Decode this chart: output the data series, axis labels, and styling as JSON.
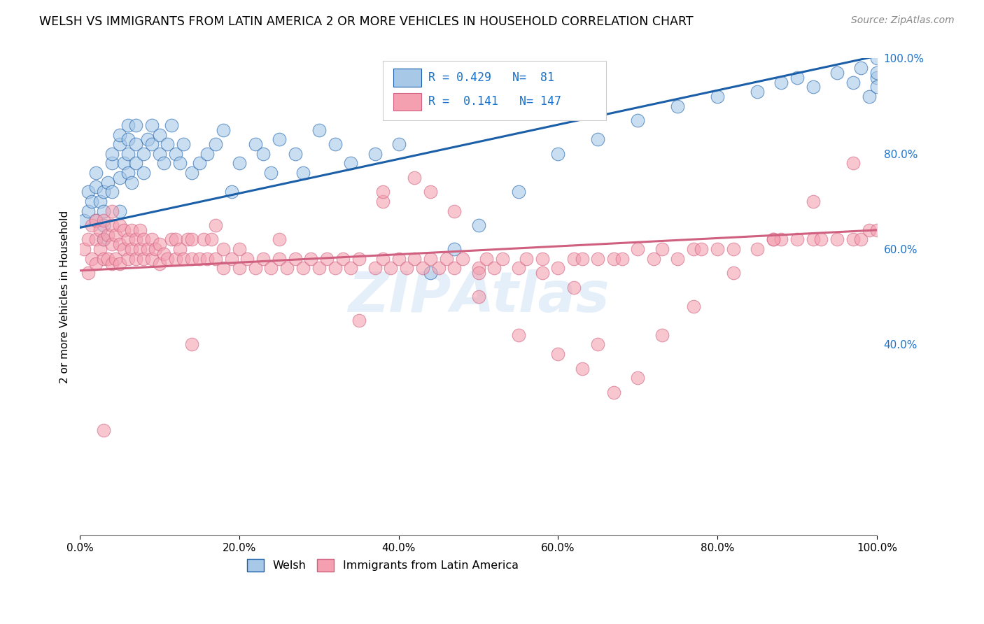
{
  "title": "WELSH VS IMMIGRANTS FROM LATIN AMERICA 2 OR MORE VEHICLES IN HOUSEHOLD CORRELATION CHART",
  "source": "Source: ZipAtlas.com",
  "ylabel": "2 or more Vehicles in Household",
  "R_welsh": 0.429,
  "N_welsh": 81,
  "R_latin": 0.141,
  "N_latin": 147,
  "welsh_color": "#a8c8e8",
  "latin_color": "#f4a0b0",
  "welsh_line_color": "#1a5fa8",
  "latin_line_color": "#d06080",
  "background_color": "#ffffff",
  "grid_color": "#cccccc",
  "xlim": [
    0.0,
    1.0
  ],
  "ylim": [
    0.0,
    1.0
  ],
  "welsh_line_x0": 0.0,
  "welsh_line_y0": 0.645,
  "welsh_line_x1": 1.0,
  "welsh_line_y1": 1.005,
  "latin_line_x0": 0.0,
  "latin_line_y0": 0.555,
  "latin_line_x1": 1.0,
  "latin_line_y1": 0.64,
  "welsh_x": [
    0.005,
    0.01,
    0.01,
    0.015,
    0.02,
    0.02,
    0.02,
    0.025,
    0.03,
    0.03,
    0.03,
    0.03,
    0.035,
    0.04,
    0.04,
    0.04,
    0.05,
    0.05,
    0.05,
    0.05,
    0.055,
    0.06,
    0.06,
    0.06,
    0.06,
    0.065,
    0.07,
    0.07,
    0.07,
    0.08,
    0.08,
    0.085,
    0.09,
    0.09,
    0.1,
    0.1,
    0.105,
    0.11,
    0.115,
    0.12,
    0.125,
    0.13,
    0.14,
    0.15,
    0.16,
    0.17,
    0.18,
    0.19,
    0.2,
    0.22,
    0.23,
    0.24,
    0.25,
    0.27,
    0.28,
    0.3,
    0.32,
    0.34,
    0.37,
    0.4,
    0.44,
    0.47,
    0.5,
    0.55,
    0.6,
    0.65,
    0.7,
    0.75,
    0.8,
    0.85,
    0.88,
    0.9,
    0.92,
    0.95,
    0.97,
    0.98,
    0.99,
    1.0,
    1.0,
    1.0,
    1.0
  ],
  "welsh_y": [
    0.66,
    0.68,
    0.72,
    0.7,
    0.73,
    0.76,
    0.66,
    0.7,
    0.68,
    0.72,
    0.65,
    0.62,
    0.74,
    0.72,
    0.78,
    0.8,
    0.75,
    0.82,
    0.84,
    0.68,
    0.78,
    0.76,
    0.8,
    0.83,
    0.86,
    0.74,
    0.78,
    0.82,
    0.86,
    0.76,
    0.8,
    0.83,
    0.82,
    0.86,
    0.8,
    0.84,
    0.78,
    0.82,
    0.86,
    0.8,
    0.78,
    0.82,
    0.76,
    0.78,
    0.8,
    0.82,
    0.85,
    0.72,
    0.78,
    0.82,
    0.8,
    0.76,
    0.83,
    0.8,
    0.76,
    0.85,
    0.82,
    0.78,
    0.8,
    0.82,
    0.55,
    0.6,
    0.65,
    0.72,
    0.8,
    0.83,
    0.87,
    0.9,
    0.92,
    0.93,
    0.95,
    0.96,
    0.94,
    0.97,
    0.95,
    0.98,
    0.92,
    0.96,
    1.0,
    0.97,
    0.94
  ],
  "latin_x": [
    0.005,
    0.01,
    0.01,
    0.015,
    0.015,
    0.02,
    0.02,
    0.02,
    0.025,
    0.025,
    0.03,
    0.03,
    0.03,
    0.035,
    0.035,
    0.04,
    0.04,
    0.04,
    0.04,
    0.045,
    0.045,
    0.05,
    0.05,
    0.05,
    0.055,
    0.055,
    0.06,
    0.06,
    0.065,
    0.065,
    0.07,
    0.07,
    0.075,
    0.075,
    0.08,
    0.08,
    0.085,
    0.09,
    0.09,
    0.095,
    0.1,
    0.1,
    0.105,
    0.11,
    0.115,
    0.12,
    0.12,
    0.125,
    0.13,
    0.135,
    0.14,
    0.14,
    0.15,
    0.155,
    0.16,
    0.165,
    0.17,
    0.18,
    0.18,
    0.19,
    0.2,
    0.2,
    0.21,
    0.22,
    0.23,
    0.24,
    0.25,
    0.25,
    0.26,
    0.27,
    0.28,
    0.29,
    0.3,
    0.31,
    0.32,
    0.33,
    0.34,
    0.35,
    0.37,
    0.38,
    0.39,
    0.4,
    0.41,
    0.42,
    0.43,
    0.44,
    0.45,
    0.46,
    0.47,
    0.48,
    0.5,
    0.51,
    0.52,
    0.53,
    0.55,
    0.56,
    0.58,
    0.6,
    0.62,
    0.63,
    0.65,
    0.67,
    0.68,
    0.7,
    0.72,
    0.73,
    0.75,
    0.77,
    0.78,
    0.8,
    0.82,
    0.85,
    0.87,
    0.88,
    0.9,
    0.92,
    0.93,
    0.95,
    0.97,
    0.98,
    0.99,
    1.0,
    0.03,
    0.14,
    0.17,
    0.35,
    0.38,
    0.44,
    0.47,
    0.5,
    0.55,
    0.6,
    0.63,
    0.67,
    0.7,
    0.73,
    0.77,
    0.82,
    0.87,
    0.92,
    0.97,
    0.62,
    0.38,
    0.42,
    0.5,
    0.58,
    0.65
  ],
  "latin_y": [
    0.6,
    0.55,
    0.62,
    0.58,
    0.65,
    0.57,
    0.62,
    0.66,
    0.6,
    0.64,
    0.58,
    0.62,
    0.66,
    0.58,
    0.63,
    0.57,
    0.61,
    0.65,
    0.68,
    0.58,
    0.63,
    0.57,
    0.61,
    0.65,
    0.6,
    0.64,
    0.58,
    0.62,
    0.6,
    0.64,
    0.58,
    0.62,
    0.6,
    0.64,
    0.58,
    0.62,
    0.6,
    0.58,
    0.62,
    0.6,
    0.57,
    0.61,
    0.59,
    0.58,
    0.62,
    0.58,
    0.62,
    0.6,
    0.58,
    0.62,
    0.58,
    0.62,
    0.58,
    0.62,
    0.58,
    0.62,
    0.58,
    0.56,
    0.6,
    0.58,
    0.56,
    0.6,
    0.58,
    0.56,
    0.58,
    0.56,
    0.58,
    0.62,
    0.56,
    0.58,
    0.56,
    0.58,
    0.56,
    0.58,
    0.56,
    0.58,
    0.56,
    0.58,
    0.56,
    0.58,
    0.56,
    0.58,
    0.56,
    0.58,
    0.56,
    0.58,
    0.56,
    0.58,
    0.56,
    0.58,
    0.56,
    0.58,
    0.56,
    0.58,
    0.56,
    0.58,
    0.58,
    0.56,
    0.58,
    0.58,
    0.58,
    0.58,
    0.58,
    0.6,
    0.58,
    0.6,
    0.58,
    0.6,
    0.6,
    0.6,
    0.6,
    0.6,
    0.62,
    0.62,
    0.62,
    0.62,
    0.62,
    0.62,
    0.62,
    0.62,
    0.64,
    0.64,
    0.22,
    0.4,
    0.65,
    0.45,
    0.7,
    0.72,
    0.68,
    0.55,
    0.42,
    0.38,
    0.35,
    0.3,
    0.33,
    0.42,
    0.48,
    0.55,
    0.62,
    0.7,
    0.78,
    0.52,
    0.72,
    0.75,
    0.5,
    0.55,
    0.4
  ]
}
